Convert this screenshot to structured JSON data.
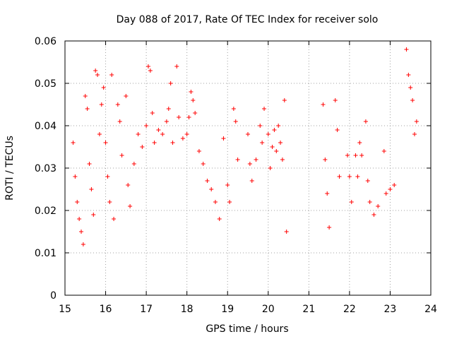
{
  "chart_data": {
    "type": "scatter",
    "title": "Day 088 of 2017, Rate Of TEC Index for receiver solo",
    "xlabel": "GPS time / hours",
    "ylabel": "ROTI / TECUs",
    "xlim": [
      15,
      24
    ],
    "ylim": [
      0,
      0.06
    ],
    "xticks": [
      15,
      16,
      17,
      18,
      19,
      20,
      21,
      22,
      23,
      24
    ],
    "xtick_labels": [
      "15",
      "16",
      "17",
      "18",
      "19",
      "20",
      "21",
      "22",
      "23",
      "24"
    ],
    "yticks": [
      0,
      0.01,
      0.02,
      0.03,
      0.04,
      0.05,
      0.06
    ],
    "ytick_labels": [
      "0",
      "0.01",
      "0.02",
      "0.03",
      "0.04",
      "0.05",
      "0.06"
    ],
    "grid": true,
    "marker": "+",
    "color": "#ff0000",
    "series": [
      {
        "name": "ROTI",
        "points": [
          [
            15.2,
            0.036
          ],
          [
            15.25,
            0.028
          ],
          [
            15.3,
            0.022
          ],
          [
            15.35,
            0.018
          ],
          [
            15.4,
            0.015
          ],
          [
            15.45,
            0.012
          ],
          [
            15.5,
            0.047
          ],
          [
            15.55,
            0.044
          ],
          [
            15.6,
            0.031
          ],
          [
            15.65,
            0.025
          ],
          [
            15.7,
            0.019
          ],
          [
            15.75,
            0.053
          ],
          [
            15.8,
            0.052
          ],
          [
            15.85,
            0.038
          ],
          [
            15.9,
            0.045
          ],
          [
            15.95,
            0.049
          ],
          [
            16.0,
            0.036
          ],
          [
            16.05,
            0.028
          ],
          [
            16.1,
            0.022
          ],
          [
            16.15,
            0.052
          ],
          [
            16.2,
            0.018
          ],
          [
            16.3,
            0.045
          ],
          [
            16.35,
            0.041
          ],
          [
            16.4,
            0.033
          ],
          [
            16.5,
            0.047
          ],
          [
            16.55,
            0.026
          ],
          [
            16.6,
            0.021
          ],
          [
            16.7,
            0.031
          ],
          [
            16.8,
            0.038
          ],
          [
            16.9,
            0.035
          ],
          [
            17.0,
            0.04
          ],
          [
            17.05,
            0.054
          ],
          [
            17.1,
            0.053
          ],
          [
            17.15,
            0.043
          ],
          [
            17.2,
            0.036
          ],
          [
            17.3,
            0.039
          ],
          [
            17.4,
            0.038
          ],
          [
            17.5,
            0.041
          ],
          [
            17.55,
            0.044
          ],
          [
            17.6,
            0.05
          ],
          [
            17.65,
            0.036
          ],
          [
            17.75,
            0.054
          ],
          [
            17.8,
            0.042
          ],
          [
            17.9,
            0.037
          ],
          [
            18.0,
            0.038
          ],
          [
            18.05,
            0.042
          ],
          [
            18.1,
            0.048
          ],
          [
            18.15,
            0.046
          ],
          [
            18.2,
            0.043
          ],
          [
            18.3,
            0.034
          ],
          [
            18.4,
            0.031
          ],
          [
            18.5,
            0.027
          ],
          [
            18.6,
            0.025
          ],
          [
            18.7,
            0.022
          ],
          [
            18.8,
            0.018
          ],
          [
            18.9,
            0.037
          ],
          [
            19.0,
            0.026
          ],
          [
            19.05,
            0.022
          ],
          [
            19.15,
            0.044
          ],
          [
            19.2,
            0.041
          ],
          [
            19.25,
            0.032
          ],
          [
            19.5,
            0.038
          ],
          [
            19.55,
            0.031
          ],
          [
            19.6,
            0.027
          ],
          [
            19.7,
            0.032
          ],
          [
            19.8,
            0.04
          ],
          [
            19.85,
            0.036
          ],
          [
            19.9,
            0.044
          ],
          [
            20.0,
            0.038
          ],
          [
            20.05,
            0.03
          ],
          [
            20.1,
            0.035
          ],
          [
            20.15,
            0.039
          ],
          [
            20.2,
            0.034
          ],
          [
            20.25,
            0.04
          ],
          [
            20.3,
            0.036
          ],
          [
            20.35,
            0.032
          ],
          [
            20.4,
            0.046
          ],
          [
            20.45,
            0.015
          ],
          [
            21.35,
            0.045
          ],
          [
            21.4,
            0.032
          ],
          [
            21.45,
            0.024
          ],
          [
            21.5,
            0.016
          ],
          [
            21.65,
            0.046
          ],
          [
            21.7,
            0.039
          ],
          [
            21.75,
            0.028
          ],
          [
            21.95,
            0.033
          ],
          [
            22.0,
            0.028
          ],
          [
            22.05,
            0.022
          ],
          [
            22.15,
            0.033
          ],
          [
            22.2,
            0.028
          ],
          [
            22.25,
            0.036
          ],
          [
            22.3,
            0.033
          ],
          [
            22.4,
            0.041
          ],
          [
            22.45,
            0.027
          ],
          [
            22.5,
            0.022
          ],
          [
            22.6,
            0.019
          ],
          [
            22.7,
            0.021
          ],
          [
            22.85,
            0.034
          ],
          [
            22.9,
            0.024
          ],
          [
            23.0,
            0.025
          ],
          [
            23.1,
            0.026
          ],
          [
            23.4,
            0.058
          ],
          [
            23.45,
            0.052
          ],
          [
            23.5,
            0.049
          ],
          [
            23.55,
            0.046
          ],
          [
            23.6,
            0.038
          ],
          [
            23.65,
            0.041
          ]
        ]
      }
    ]
  }
}
